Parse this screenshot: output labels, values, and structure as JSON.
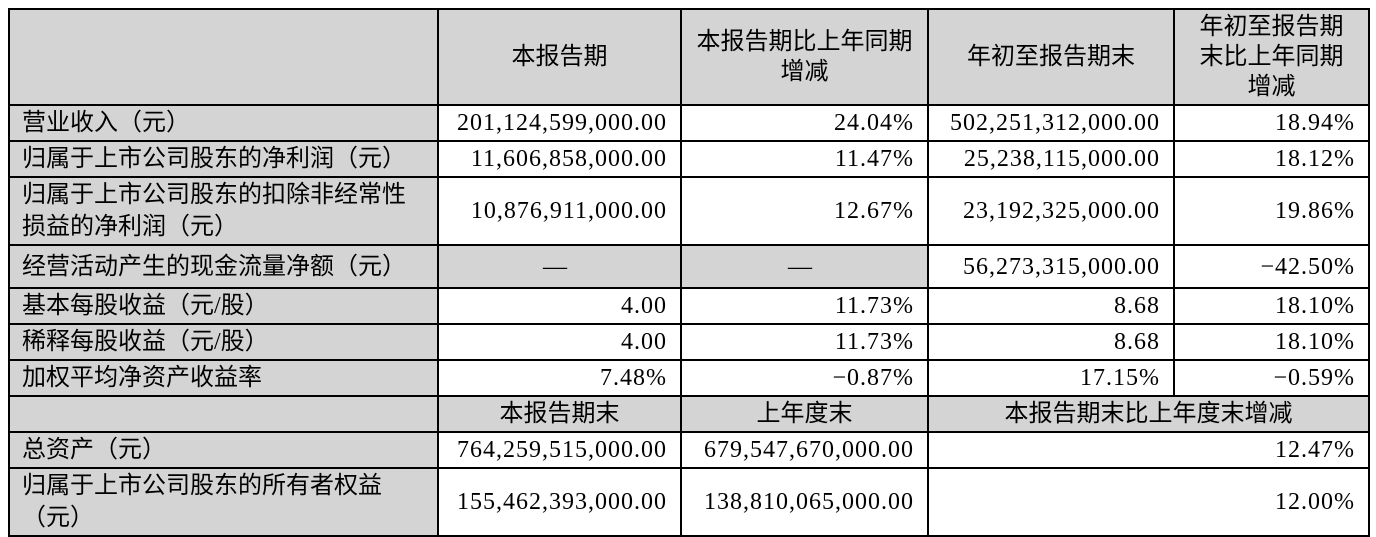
{
  "colors": {
    "header_bg": "#d4d4d4",
    "border": "#000000",
    "page_bg": "#ffffff",
    "text": "#000000"
  },
  "table": {
    "top_header": {
      "corner": "",
      "current_period": "本报告期",
      "current_period_yoy": "本报告期比上年同期\n增减",
      "ytd": "年初至报告期末",
      "ytd_yoy": "年初至报告期\n末比上年同期\n增减"
    },
    "top_rows": [
      {
        "label": "营业收入（元）",
        "values": [
          "201,124,599,000.00",
          "24.04%",
          "502,251,312,000.00",
          "18.94%"
        ]
      },
      {
        "label": "归属于上市公司股东的净利润（元）",
        "values": [
          "11,606,858,000.00",
          "11.47%",
          "25,238,115,000.00",
          "18.12%"
        ]
      },
      {
        "label": "归属于上市公司股东的扣除非经常性\n损益的净利润（元）",
        "values": [
          "10,876,911,000.00",
          "12.67%",
          "23,192,325,000.00",
          "19.86%"
        ]
      },
      {
        "label": "经营活动产生的现金流量净额（元）",
        "values": [
          "—",
          "—",
          "56,273,315,000.00",
          "−42.50%"
        ]
      },
      {
        "label": "基本每股收益（元/股）",
        "values": [
          "4.00",
          "11.73%",
          "8.68",
          "18.10%"
        ]
      },
      {
        "label": "稀释每股收益（元/股）",
        "values": [
          "4.00",
          "11.73%",
          "8.68",
          "18.10%"
        ]
      },
      {
        "label": "加权平均净资产收益率",
        "values": [
          "7.48%",
          "−0.87%",
          "17.15%",
          "−0.59%"
        ]
      }
    ],
    "bottom_header": {
      "corner": "",
      "period_end": "本报告期末",
      "prev_year_end": "上年度末",
      "period_end_change": "本报告期末比上年度末增减"
    },
    "bottom_rows": [
      {
        "label": "总资产（元）",
        "period_end": "764,259,515,000.00",
        "prev_year_end": "679,547,670,000.00",
        "change": "12.47%"
      },
      {
        "label": "归属于上市公司股东的所有者权益\n（元）",
        "period_end": "155,462,393,000.00",
        "prev_year_end": "138,810,065,000.00",
        "change": "12.00%"
      }
    ]
  }
}
